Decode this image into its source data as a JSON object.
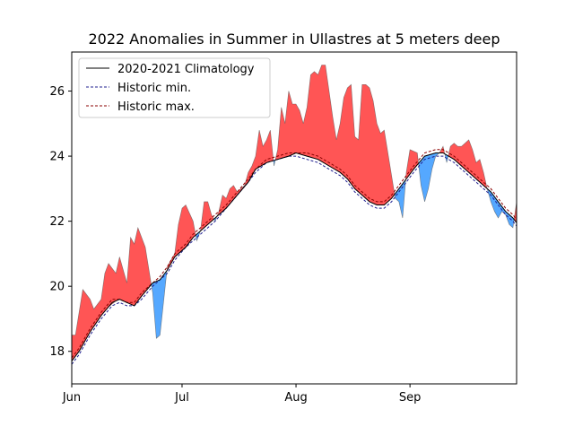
{
  "chart_data": {
    "type": "area",
    "title": "2022 Anomalies in Summer in Ullastres at 5 meters deep",
    "xlabel": "",
    "ylabel": "",
    "x_unit": "day of year (2022)",
    "xlim": [
      152,
      273
    ],
    "ylim": [
      17.0,
      27.2
    ],
    "x_ticks": [
      {
        "label": "Jun",
        "x": 152
      },
      {
        "label": "Jul",
        "x": 182
      },
      {
        "label": "Aug",
        "x": 213
      },
      {
        "label": "Sep",
        "x": 244
      }
    ],
    "y_ticks": [
      18,
      20,
      22,
      24,
      26
    ],
    "grid": false,
    "legend_position": "top-left",
    "legend": [
      {
        "label": "2020-2021 Climatology",
        "style": "solid",
        "color": "#000000"
      },
      {
        "label": "Historic min.",
        "style": "dashed",
        "color": "#1f1f8f"
      },
      {
        "label": "Historic max.",
        "style": "dashed",
        "color": "#8b0000"
      }
    ],
    "colors": {
      "above": "#ff5555",
      "below": "#55a8ff",
      "climatology": "#000000",
      "historic_min": "#1f1f8f",
      "historic_max": "#8b0000",
      "observed_edge": "#555555"
    },
    "series": [
      {
        "key": "climatology",
        "name": "2020-2021 Climatology",
        "points": [
          [
            152,
            17.7
          ],
          [
            154,
            18.0
          ],
          [
            157,
            18.6
          ],
          [
            160,
            19.1
          ],
          [
            163,
            19.5
          ],
          [
            165,
            19.6
          ],
          [
            167,
            19.5
          ],
          [
            169,
            19.4
          ],
          [
            171,
            19.7
          ],
          [
            174,
            20.1
          ],
          [
            176,
            20.2
          ],
          [
            178,
            20.5
          ],
          [
            180,
            20.9
          ],
          [
            183,
            21.2
          ],
          [
            185,
            21.5
          ],
          [
            188,
            21.8
          ],
          [
            191,
            22.1
          ],
          [
            194,
            22.4
          ],
          [
            197,
            22.8
          ],
          [
            200,
            23.2
          ],
          [
            202,
            23.6
          ],
          [
            205,
            23.8
          ],
          [
            208,
            23.9
          ],
          [
            211,
            24.0
          ],
          [
            213,
            24.1
          ],
          [
            216,
            24.0
          ],
          [
            219,
            23.9
          ],
          [
            222,
            23.7
          ],
          [
            225,
            23.5
          ],
          [
            227,
            23.3
          ],
          [
            229,
            23.0
          ],
          [
            231,
            22.8
          ],
          [
            233,
            22.6
          ],
          [
            235,
            22.5
          ],
          [
            237,
            22.5
          ],
          [
            239,
            22.7
          ],
          [
            241,
            23.0
          ],
          [
            243,
            23.3
          ],
          [
            245,
            23.6
          ],
          [
            248,
            24.0
          ],
          [
            251,
            24.1
          ],
          [
            253,
            24.1
          ],
          [
            256,
            23.9
          ],
          [
            259,
            23.6
          ],
          [
            262,
            23.3
          ],
          [
            264,
            23.1
          ],
          [
            266,
            22.9
          ],
          [
            268,
            22.6
          ],
          [
            270,
            22.3
          ],
          [
            272,
            22.1
          ],
          [
            274,
            21.8
          ],
          [
            276,
            21.5
          ],
          [
            278,
            21.2
          ],
          [
            280,
            21.1
          ],
          [
            281,
            21.1
          ]
        ]
      },
      {
        "key": "historic_min",
        "name": "Historic min.",
        "points": [
          [
            152,
            17.6
          ],
          [
            154,
            17.9
          ],
          [
            157,
            18.5
          ],
          [
            160,
            19.0
          ],
          [
            163,
            19.4
          ],
          [
            165,
            19.5
          ],
          [
            167,
            19.4
          ],
          [
            169,
            19.4
          ],
          [
            171,
            19.6
          ],
          [
            174,
            20.0
          ],
          [
            176,
            20.2
          ],
          [
            178,
            20.4
          ],
          [
            180,
            20.8
          ],
          [
            183,
            21.2
          ],
          [
            185,
            21.4
          ],
          [
            188,
            21.7
          ],
          [
            191,
            22.0
          ],
          [
            194,
            22.4
          ],
          [
            197,
            22.8
          ],
          [
            200,
            23.2
          ],
          [
            202,
            23.5
          ],
          [
            205,
            23.8
          ],
          [
            208,
            23.9
          ],
          [
            211,
            24.0
          ],
          [
            213,
            24.0
          ],
          [
            216,
            23.9
          ],
          [
            219,
            23.8
          ],
          [
            222,
            23.6
          ],
          [
            225,
            23.4
          ],
          [
            227,
            23.2
          ],
          [
            229,
            22.9
          ],
          [
            231,
            22.7
          ],
          [
            233,
            22.5
          ],
          [
            235,
            22.4
          ],
          [
            237,
            22.4
          ],
          [
            239,
            22.6
          ],
          [
            241,
            22.9
          ],
          [
            243,
            23.2
          ],
          [
            245,
            23.5
          ],
          [
            248,
            23.9
          ],
          [
            251,
            24.0
          ],
          [
            253,
            24.0
          ],
          [
            256,
            23.8
          ],
          [
            259,
            23.5
          ],
          [
            262,
            23.2
          ],
          [
            264,
            23.0
          ],
          [
            266,
            22.8
          ],
          [
            268,
            22.5
          ],
          [
            270,
            22.2
          ],
          [
            272,
            22.0
          ],
          [
            274,
            21.7
          ],
          [
            276,
            21.4
          ],
          [
            278,
            21.1
          ],
          [
            280,
            21.1
          ],
          [
            281,
            21.1
          ]
        ]
      },
      {
        "key": "historic_max",
        "name": "Historic max.",
        "points": [
          [
            152,
            17.8
          ],
          [
            154,
            18.1
          ],
          [
            157,
            18.7
          ],
          [
            160,
            19.2
          ],
          [
            163,
            19.6
          ],
          [
            165,
            19.6
          ],
          [
            167,
            19.5
          ],
          [
            169,
            19.5
          ],
          [
            171,
            19.8
          ],
          [
            174,
            20.1
          ],
          [
            176,
            20.3
          ],
          [
            178,
            20.6
          ],
          [
            180,
            21.0
          ],
          [
            183,
            21.3
          ],
          [
            185,
            21.6
          ],
          [
            188,
            21.9
          ],
          [
            191,
            22.2
          ],
          [
            194,
            22.5
          ],
          [
            197,
            22.9
          ],
          [
            200,
            23.3
          ],
          [
            202,
            23.6
          ],
          [
            205,
            23.9
          ],
          [
            208,
            24.0
          ],
          [
            211,
            24.1
          ],
          [
            213,
            24.1
          ],
          [
            216,
            24.1
          ],
          [
            219,
            24.0
          ],
          [
            222,
            23.8
          ],
          [
            225,
            23.6
          ],
          [
            227,
            23.4
          ],
          [
            229,
            23.1
          ],
          [
            231,
            22.9
          ],
          [
            233,
            22.7
          ],
          [
            235,
            22.6
          ],
          [
            237,
            22.6
          ],
          [
            239,
            22.8
          ],
          [
            241,
            23.1
          ],
          [
            243,
            23.4
          ],
          [
            245,
            23.7
          ],
          [
            248,
            24.1
          ],
          [
            251,
            24.2
          ],
          [
            253,
            24.2
          ],
          [
            256,
            24.0
          ],
          [
            259,
            23.7
          ],
          [
            262,
            23.4
          ],
          [
            264,
            23.2
          ],
          [
            266,
            23.0
          ],
          [
            268,
            22.7
          ],
          [
            270,
            22.4
          ],
          [
            272,
            22.2
          ],
          [
            274,
            21.9
          ],
          [
            276,
            21.6
          ],
          [
            278,
            21.3
          ],
          [
            280,
            21.2
          ],
          [
            281,
            21.2
          ]
        ]
      },
      {
        "key": "observed",
        "name": "",
        "points": [
          [
            152,
            18.5
          ],
          [
            153,
            18.5
          ],
          [
            155,
            19.9
          ],
          [
            157,
            19.6
          ],
          [
            158,
            19.3
          ],
          [
            160,
            19.6
          ],
          [
            161,
            20.4
          ],
          [
            162,
            20.7
          ],
          [
            164,
            20.4
          ],
          [
            165,
            20.9
          ],
          [
            166,
            20.5
          ],
          [
            167,
            20.1
          ],
          [
            168,
            21.5
          ],
          [
            169,
            21.3
          ],
          [
            170,
            21.8
          ],
          [
            172,
            21.2
          ],
          [
            174,
            19.8
          ],
          [
            175,
            18.4
          ],
          [
            176,
            18.5
          ],
          [
            178,
            20.6
          ],
          [
            180,
            21.0
          ],
          [
            181,
            21.9
          ],
          [
            182,
            22.4
          ],
          [
            183,
            22.5
          ],
          [
            185,
            22.0
          ],
          [
            186,
            21.4
          ],
          [
            187,
            21.7
          ],
          [
            188,
            22.6
          ],
          [
            189,
            22.6
          ],
          [
            190,
            22.2
          ],
          [
            191,
            22.0
          ],
          [
            192,
            22.3
          ],
          [
            193,
            22.8
          ],
          [
            194,
            22.7
          ],
          [
            195,
            23.0
          ],
          [
            196,
            23.1
          ],
          [
            197,
            22.9
          ],
          [
            199,
            23.1
          ],
          [
            200,
            23.5
          ],
          [
            201,
            23.7
          ],
          [
            202,
            24.0
          ],
          [
            203,
            24.8
          ],
          [
            204,
            24.3
          ],
          [
            205,
            24.5
          ],
          [
            206,
            24.8
          ],
          [
            207,
            23.7
          ],
          [
            208,
            24.2
          ],
          [
            209,
            25.5
          ],
          [
            210,
            25.0
          ],
          [
            211,
            26.0
          ],
          [
            212,
            25.6
          ],
          [
            213,
            25.6
          ],
          [
            214,
            25.4
          ],
          [
            215,
            25.0
          ],
          [
            216,
            25.5
          ],
          [
            217,
            26.5
          ],
          [
            218,
            26.6
          ],
          [
            219,
            26.5
          ],
          [
            220,
            26.8
          ],
          [
            221,
            26.8
          ],
          [
            222,
            26.0
          ],
          [
            223,
            25.2
          ],
          [
            224,
            24.5
          ],
          [
            225,
            25.0
          ],
          [
            226,
            25.8
          ],
          [
            227,
            26.1
          ],
          [
            228,
            26.2
          ],
          [
            229,
            24.6
          ],
          [
            230,
            24.5
          ],
          [
            231,
            26.2
          ],
          [
            232,
            26.2
          ],
          [
            233,
            26.1
          ],
          [
            234,
            25.7
          ],
          [
            235,
            25.0
          ],
          [
            236,
            24.7
          ],
          [
            237,
            24.8
          ],
          [
            239,
            23.4
          ],
          [
            240,
            22.7
          ],
          [
            241,
            22.6
          ],
          [
            242,
            22.1
          ],
          [
            243,
            23.5
          ],
          [
            244,
            24.2
          ],
          [
            246,
            24.1
          ],
          [
            247,
            23.1
          ],
          [
            248,
            22.6
          ],
          [
            249,
            23.0
          ],
          [
            250,
            23.6
          ],
          [
            251,
            24.0
          ],
          [
            252,
            24.1
          ],
          [
            253,
            24.3
          ],
          [
            254,
            23.8
          ],
          [
            255,
            24.3
          ],
          [
            256,
            24.4
          ],
          [
            257,
            24.3
          ],
          [
            258,
            24.3
          ],
          [
            259,
            24.4
          ],
          [
            260,
            24.5
          ],
          [
            261,
            24.2
          ],
          [
            262,
            23.8
          ],
          [
            263,
            23.9
          ],
          [
            264,
            23.5
          ],
          [
            265,
            23.0
          ],
          [
            266,
            22.6
          ],
          [
            267,
            22.3
          ],
          [
            268,
            22.1
          ],
          [
            269,
            22.3
          ],
          [
            270,
            22.2
          ],
          [
            271,
            21.9
          ],
          [
            272,
            21.8
          ],
          [
            273,
            22.6
          ],
          [
            274,
            22.7
          ],
          [
            275,
            22.3
          ]
        ]
      }
    ]
  }
}
